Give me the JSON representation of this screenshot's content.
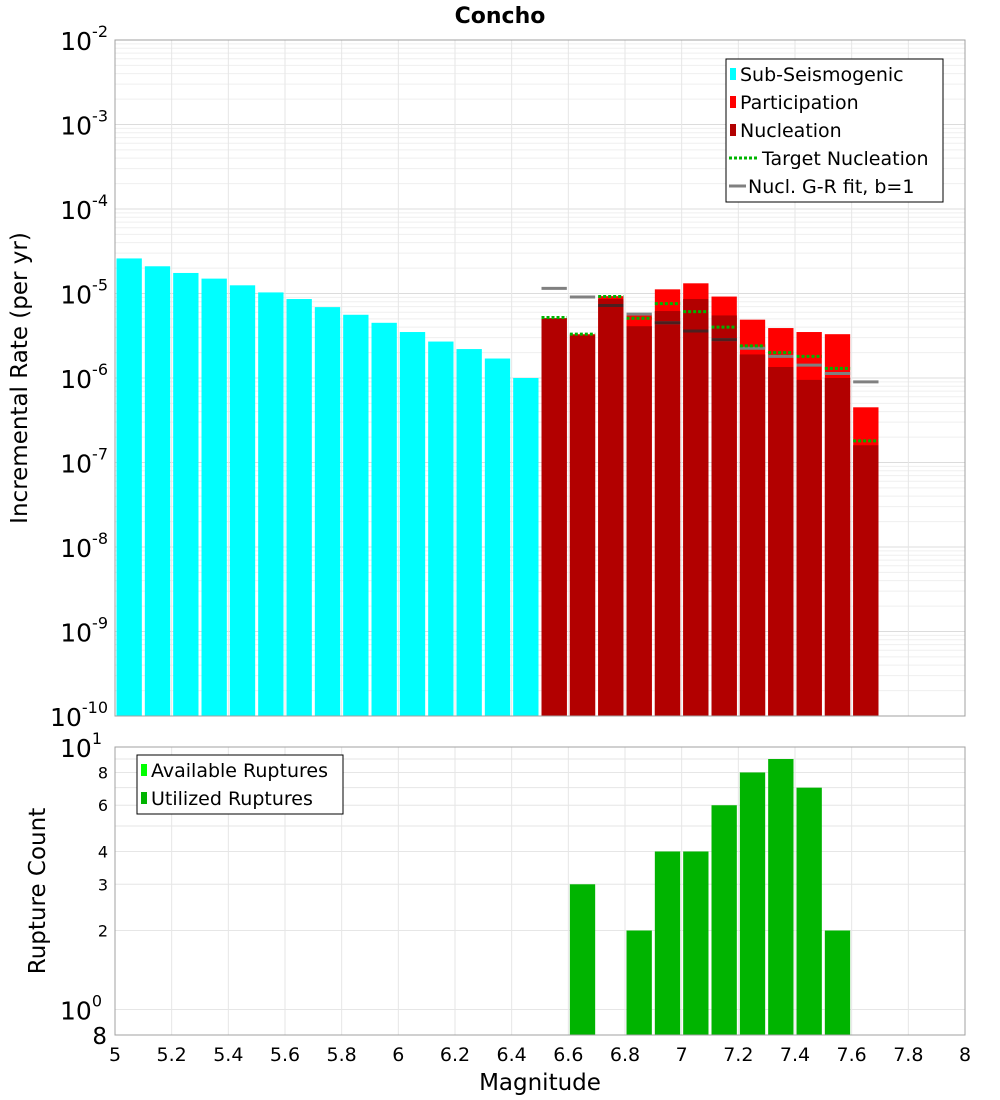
{
  "chart_data": [
    {
      "type": "bar",
      "title": "Concho",
      "xlabel": "",
      "ylabel": "Incremental Rate (per yr)",
      "yscale": "log",
      "xlim": [
        5,
        8
      ],
      "ylim": [
        1e-10,
        0.01
      ],
      "grid": true,
      "legend_position": "top-right",
      "y_tick_bases": [
        "10",
        "10",
        "10",
        "10",
        "10",
        "10",
        "10",
        "10",
        "10"
      ],
      "y_tick_exponents": [
        "-10",
        "-9",
        "-8",
        "-7",
        "-6",
        "-5",
        "-4",
        "-3",
        "-2"
      ],
      "legend": [
        {
          "label": "Sub-Seismogenic",
          "color": "#00ffff",
          "style": "bar"
        },
        {
          "label": "Participation",
          "color": "#ff0000",
          "style": "bar"
        },
        {
          "label": "Nucleation",
          "color": "#b20000",
          "style": "bar"
        },
        {
          "label": "Target Nucleation",
          "color": "#00b400",
          "style": "dotted"
        },
        {
          "label": "Nucl. G-R fit, b=1",
          "color": "#808080",
          "style": "line"
        }
      ],
      "series": [
        {
          "name": "Sub-Seismogenic",
          "color": "#00ffff",
          "x": [
            5.05,
            5.15,
            5.25,
            5.35,
            5.45,
            5.55,
            5.65,
            5.75,
            5.85,
            5.95,
            6.05,
            6.15,
            6.25,
            6.35,
            6.45
          ],
          "values": [
            2.6e-05,
            2.1e-05,
            1.75e-05,
            1.5e-05,
            1.25e-05,
            1.03e-05,
            8.6e-06,
            6.9e-06,
            5.6e-06,
            4.5e-06,
            3.5e-06,
            2.7e-06,
            2.2e-06,
            1.7e-06,
            1e-06
          ]
        },
        {
          "name": "Participation",
          "color": "#ff0000",
          "x": [
            6.55,
            6.65,
            6.75,
            6.85,
            6.95,
            7.05,
            7.15,
            7.25,
            7.35,
            7.45,
            7.55,
            7.65
          ],
          "values": [
            5.1e-06,
            3.3e-06,
            9.3e-06,
            5.6e-06,
            1.12e-05,
            1.32e-05,
            9.2e-06,
            4.9e-06,
            3.9e-06,
            3.5e-06,
            3.3e-06,
            4.5e-07
          ]
        },
        {
          "name": "Nucleation",
          "color": "#b20000",
          "x": [
            6.55,
            6.65,
            6.75,
            6.85,
            6.95,
            7.05,
            7.15,
            7.25,
            7.35,
            7.45,
            7.55,
            7.65
          ],
          "values": [
            5.1e-06,
            3.2e-06,
            8.6e-06,
            4.1e-06,
            6.2e-06,
            8.6e-06,
            5.5e-06,
            1.9e-06,
            1.35e-06,
            9.5e-07,
            1e-06,
            1.6e-07
          ]
        },
        {
          "name": "Target Nucleation",
          "color": "#00b400",
          "x": [
            6.55,
            6.65,
            6.75,
            6.85,
            6.95,
            7.05,
            7.15,
            7.25,
            7.35,
            7.45,
            7.55,
            7.65
          ],
          "values": [
            5.2e-06,
            3.3e-06,
            9.2e-06,
            5.1e-06,
            7.6e-06,
            6.1e-06,
            4e-06,
            2.4e-06,
            2e-06,
            1.8e-06,
            1.3e-06,
            1.8e-07
          ]
        },
        {
          "name": "Nucl. G-R fit, b=1",
          "color": "#808080",
          "x": [
            6.55,
            6.65,
            6.75,
            6.85,
            6.95,
            7.05,
            7.15,
            7.25,
            7.35,
            7.45,
            7.55,
            7.65
          ],
          "values": [
            1.15e-05,
            9.1e-06,
            7.2e-06,
            5.7e-06,
            4.5e-06,
            3.6e-06,
            2.85e-06,
            2.25e-06,
            1.8e-06,
            1.42e-06,
            1.13e-06,
            9e-07
          ]
        }
      ]
    },
    {
      "type": "bar",
      "title": "",
      "xlabel": "Magnitude",
      "ylabel": "Rupture Count",
      "yscale": "log",
      "xlim": [
        5,
        8
      ],
      "ylim": [
        0.8,
        10
      ],
      "grid": true,
      "legend_position": "top-left",
      "x_ticks": [
        "5",
        "5.2",
        "5.4",
        "5.6",
        "5.8",
        "6",
        "6.2",
        "6.4",
        "6.6",
        "6.8",
        "7",
        "7.2",
        "7.4",
        "7.6",
        "7.8",
        "8"
      ],
      "y_minor_labels": [
        "8",
        "2",
        "3",
        "4",
        "6",
        "8"
      ],
      "y_tick_bases": [
        "10",
        "10"
      ],
      "y_tick_exponents": [
        "0",
        "1"
      ],
      "legend": [
        {
          "label": "Available Ruptures",
          "color": "#00ff00",
          "style": "bar"
        },
        {
          "label": "Utilized Ruptures",
          "color": "#00b400",
          "style": "bar"
        }
      ],
      "series": [
        {
          "name": "Utilized Ruptures",
          "color": "#00b400",
          "x": [
            6.65,
            6.75,
            6.85,
            6.95,
            7.05,
            7.15,
            7.25,
            7.35,
            7.45,
            7.55
          ],
          "values": [
            3,
            0,
            2,
            4,
            4,
            6,
            8,
            9,
            7,
            2
          ]
        }
      ]
    }
  ]
}
